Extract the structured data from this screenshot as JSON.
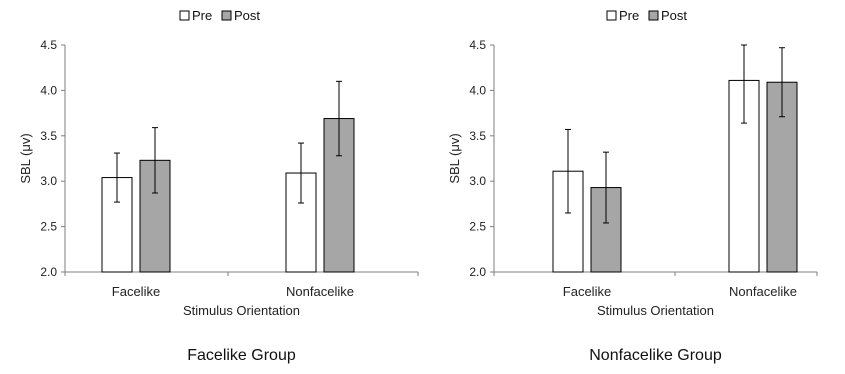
{
  "legend": {
    "pre": "Pre",
    "post": "Post"
  },
  "colors": {
    "pre": "#ffffff",
    "post": "#a6a6a6",
    "stroke": "#000000",
    "axis": "#7f7f7f"
  },
  "chart_data": [
    {
      "type": "bar",
      "title": "Facelike Group",
      "xlabel": "Stimulus Orientation",
      "ylabel": "SBL (μv)",
      "ylim": [
        2.0,
        4.5
      ],
      "yticks": [
        "2.0",
        "2.5",
        "3.0",
        "3.5",
        "4.0",
        "4.5"
      ],
      "legend_position": "top-center",
      "categories": [
        "Facelike",
        "Nonfacelike"
      ],
      "series": [
        {
          "name": "Pre",
          "values": [
            3.04,
            3.09
          ],
          "error": [
            0.27,
            0.33
          ]
        },
        {
          "name": "Post",
          "values": [
            3.23,
            3.69
          ],
          "error": [
            0.36,
            0.41
          ]
        }
      ]
    },
    {
      "type": "bar",
      "title": "Nonfacelike Group",
      "xlabel": "Stimulus Orientation",
      "ylabel": "SBL (μv)",
      "ylim": [
        2.0,
        4.5
      ],
      "yticks": [
        "2.0",
        "2.5",
        "3.0",
        "3.5",
        "4.0",
        "4.5"
      ],
      "legend_position": "top-center",
      "categories": [
        "Facelike",
        "Nonfacelike"
      ],
      "series": [
        {
          "name": "Pre",
          "values": [
            3.11,
            4.11
          ],
          "error": [
            0.46,
            0.47
          ]
        },
        {
          "name": "Post",
          "values": [
            2.93,
            4.09
          ],
          "error": [
            0.39,
            0.38
          ]
        }
      ]
    }
  ]
}
